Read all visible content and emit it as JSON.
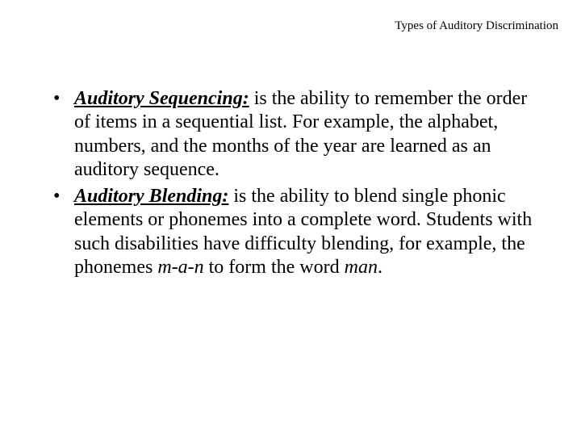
{
  "title": "Types of Auditory Discrimination",
  "bullets": [
    {
      "term": "Auditory Sequencing:",
      "body_before": " is the ability to remember the order of items in a sequential list.  For example, the alphabet, numbers, and the months of the year are learned as an auditory sequence.",
      "ital1": "",
      "body_mid": "",
      "ital2": "",
      "body_after": ""
    },
    {
      "term": "Auditory Blending:",
      "body_before": " is the ability to blend single phonic elements or phonemes into a complete word.  Students with such disabilities have difficulty blending, for example, the phonemes ",
      "ital1": "m-a-n",
      "body_mid": " to form the word ",
      "ital2": "man",
      "body_after": "."
    }
  ],
  "styling": {
    "background_color": "#ffffff",
    "text_color": "#000000",
    "title_fontsize": 15,
    "body_fontsize": 24,
    "font_family": "Times New Roman"
  }
}
